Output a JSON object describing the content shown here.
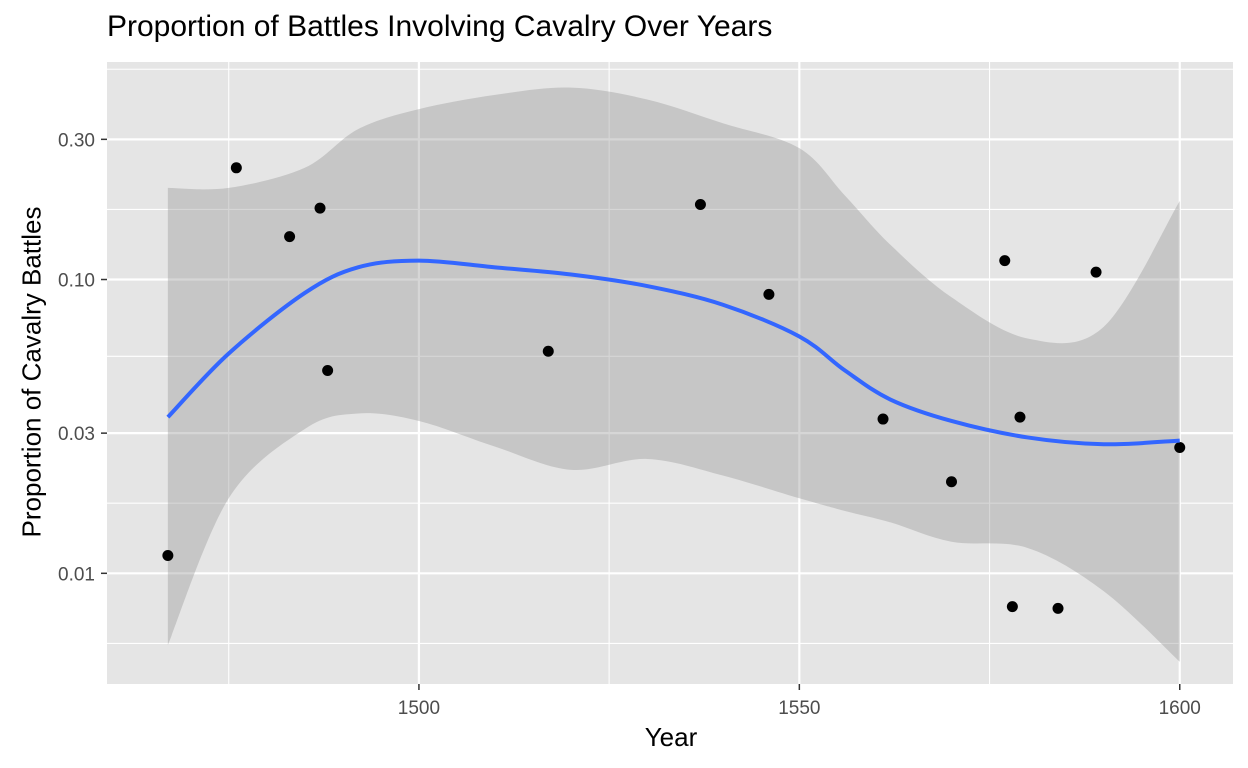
{
  "chart_data": {
    "type": "scatter",
    "title": "Proportion of Battles Involving Cavalry Over Years",
    "xlabel": "Year",
    "ylabel": "Proportion of Cavalry Battles",
    "x_ticks": [
      1500,
      1550,
      1600
    ],
    "x_tick_labels": [
      "1500",
      "1550",
      "1600"
    ],
    "y_scale": "log10",
    "y_ticks": [
      0.01,
      0.03,
      0.1,
      0.3
    ],
    "y_tick_labels": [
      "0.01",
      "0.03",
      "0.10",
      "0.30"
    ],
    "xlim": [
      1459,
      1607
    ],
    "ylim": [
      0.0042,
      0.55
    ],
    "grid": true,
    "points": [
      {
        "x": 1467,
        "y": 0.0115
      },
      {
        "x": 1476,
        "y": 0.24
      },
      {
        "x": 1483,
        "y": 0.14
      },
      {
        "x": 1487,
        "y": 0.175
      },
      {
        "x": 1488,
        "y": 0.049
      },
      {
        "x": 1517,
        "y": 0.057
      },
      {
        "x": 1537,
        "y": 0.18
      },
      {
        "x": 1546,
        "y": 0.089
      },
      {
        "x": 1561,
        "y": 0.0335
      },
      {
        "x": 1570,
        "y": 0.0205
      },
      {
        "x": 1577,
        "y": 0.116
      },
      {
        "x": 1578,
        "y": 0.0077
      },
      {
        "x": 1579,
        "y": 0.034
      },
      {
        "x": 1584,
        "y": 0.0076
      },
      {
        "x": 1589,
        "y": 0.106
      },
      {
        "x": 1600,
        "y": 0.0268
      }
    ],
    "smooth": {
      "x": [
        1467,
        1475,
        1485,
        1492,
        1500,
        1510,
        1520,
        1530,
        1540,
        1550,
        1556,
        1562,
        1570,
        1580,
        1590,
        1600
      ],
      "y": [
        0.034,
        0.056,
        0.09,
        0.11,
        0.116,
        0.11,
        0.104,
        0.095,
        0.082,
        0.064,
        0.049,
        0.039,
        0.033,
        0.029,
        0.0275,
        0.0283
      ],
      "lower": [
        0.0057,
        0.018,
        0.031,
        0.035,
        0.033,
        0.027,
        0.0225,
        0.0245,
        0.0215,
        0.018,
        0.0163,
        0.0149,
        0.0128,
        0.0122,
        0.0087,
        0.005
      ],
      "upper": [
        0.205,
        0.205,
        0.24,
        0.325,
        0.38,
        0.425,
        0.45,
        0.41,
        0.34,
        0.28,
        0.193,
        0.131,
        0.087,
        0.063,
        0.069,
        0.185
      ]
    },
    "colors": {
      "panel": "#e5e5e5",
      "grid": "#ffffff",
      "ribbon": "#999999",
      "line": "#3366ff",
      "point": "#000000",
      "tick_text": "#4d4d4d",
      "tick_mark": "#333333"
    }
  }
}
